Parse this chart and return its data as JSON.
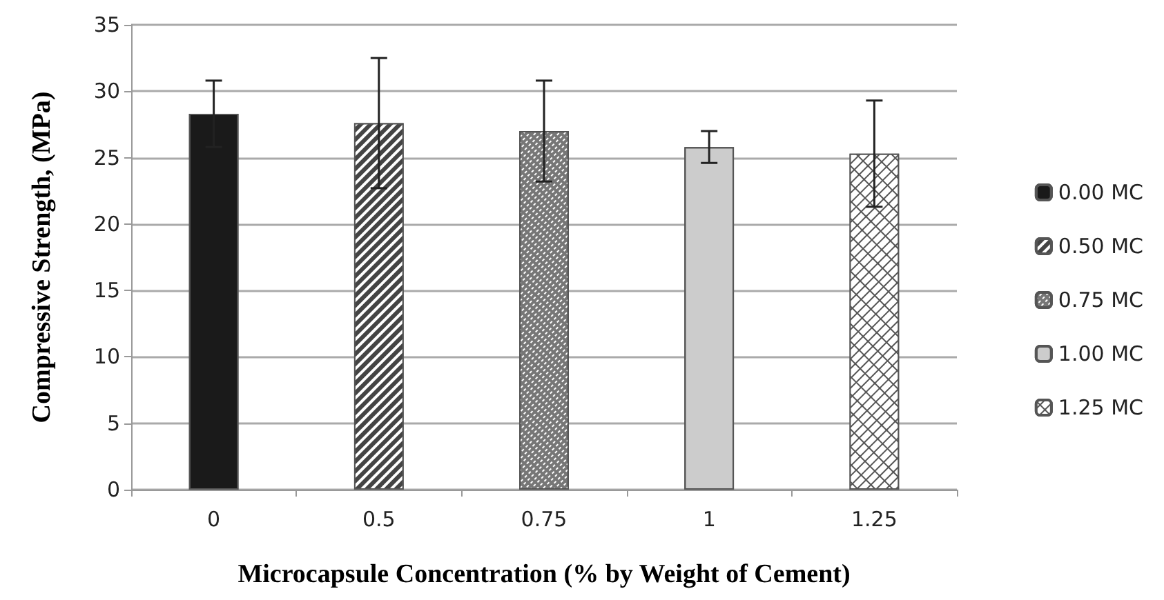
{
  "chart_data": {
    "type": "bar",
    "xlabel": "Microcapsule Concentration (% by Weight of Cement)",
    "ylabel": "Compressive Strength, (MPa)",
    "categories": [
      "0",
      "0.5",
      "0.75",
      "1",
      "1.25"
    ],
    "series": [
      {
        "name": "0.00 MC",
        "color": "#1a1a1a",
        "values": [
          28.3,
          null,
          null,
          null,
          null
        ],
        "errors": [
          2.5,
          null,
          null,
          null,
          null
        ]
      },
      {
        "name": "0.50 MC",
        "color": "#444444",
        "values": [
          null,
          27.6,
          null,
          null,
          null
        ],
        "errors": [
          null,
          4.9,
          null,
          null,
          null
        ]
      },
      {
        "name": "0.75 MC",
        "color": "#777777",
        "values": [
          null,
          null,
          27.0,
          null,
          null
        ],
        "errors": [
          null,
          null,
          3.8,
          null,
          null
        ]
      },
      {
        "name": "1.00 MC",
        "color": "#cccccc",
        "values": [
          null,
          null,
          null,
          25.8,
          null
        ],
        "errors": [
          null,
          null,
          null,
          1.2,
          null
        ]
      },
      {
        "name": "1.25 MC",
        "color": "#555555",
        "values": [
          null,
          null,
          null,
          null,
          25.3
        ],
        "errors": [
          null,
          null,
          null,
          null,
          4.0
        ]
      }
    ],
    "ylim": [
      0,
      35
    ],
    "yticks": [
      0,
      5,
      10,
      15,
      20,
      25,
      30,
      35
    ],
    "grid": "y",
    "legend": "right"
  }
}
